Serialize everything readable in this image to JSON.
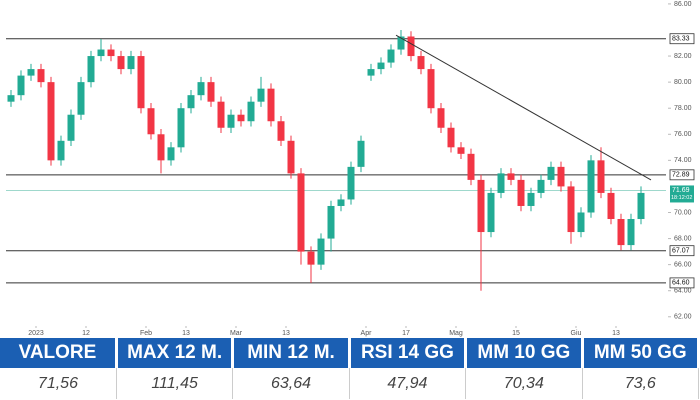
{
  "chart_data": {
    "type": "candlestick",
    "candles": [
      [
        78.5,
        79.4,
        78.1,
        79.0
      ],
      [
        79.0,
        80.9,
        78.6,
        80.5
      ],
      [
        80.5,
        81.4,
        80.1,
        81.0
      ],
      [
        81.0,
        81.4,
        79.6,
        80.0
      ],
      [
        80.0,
        80.4,
        73.6,
        74.0
      ],
      [
        74.0,
        75.9,
        73.6,
        75.5
      ],
      [
        75.5,
        77.9,
        75.1,
        77.5
      ],
      [
        77.5,
        80.4,
        77.1,
        80.0
      ],
      [
        80.0,
        82.4,
        79.6,
        82.0
      ],
      [
        82.0,
        83.3,
        81.6,
        82.5
      ],
      [
        82.5,
        82.9,
        81.6,
        82.0
      ],
      [
        82.0,
        82.4,
        80.6,
        81.0
      ],
      [
        81.0,
        82.4,
        80.6,
        82.0
      ],
      [
        82.0,
        82.4,
        77.6,
        78.0
      ],
      [
        78.0,
        78.4,
        75.6,
        76.0
      ],
      [
        76.0,
        76.4,
        73.0,
        74.0
      ],
      [
        74.0,
        75.4,
        73.6,
        75.0
      ],
      [
        75.0,
        78.4,
        74.6,
        78.0
      ],
      [
        78.0,
        79.4,
        77.6,
        79.0
      ],
      [
        79.0,
        80.4,
        78.6,
        80.0
      ],
      [
        80.0,
        80.4,
        78.1,
        78.5
      ],
      [
        78.5,
        78.9,
        76.1,
        76.5
      ],
      [
        76.5,
        77.9,
        76.1,
        77.5
      ],
      [
        77.5,
        77.9,
        76.6,
        77.0
      ],
      [
        77.0,
        78.9,
        76.6,
        78.5
      ],
      [
        78.5,
        80.4,
        78.1,
        79.5
      ],
      [
        79.5,
        79.9,
        76.6,
        77.0
      ],
      [
        77.0,
        77.4,
        75.1,
        75.5
      ],
      [
        75.5,
        75.9,
        72.6,
        73.0
      ],
      [
        73.0,
        73.4,
        66.0,
        67.0
      ],
      [
        67.0,
        67.4,
        64.6,
        66.0
      ],
      [
        66.0,
        68.4,
        65.6,
        68.0
      ],
      [
        68.0,
        70.9,
        67.0,
        70.5
      ],
      [
        70.5,
        71.4,
        70.1,
        71.0
      ],
      [
        71.0,
        73.9,
        70.6,
        73.5
      ],
      [
        73.5,
        75.9,
        73.1,
        75.5
      ],
      [
        80.5,
        81.4,
        80.1,
        81.0
      ],
      [
        81.0,
        81.9,
        80.6,
        81.5
      ],
      [
        81.5,
        82.9,
        81.1,
        82.5
      ],
      [
        82.5,
        84.0,
        82.1,
        83.5
      ],
      [
        83.5,
        83.9,
        81.6,
        82.0
      ],
      [
        82.0,
        82.4,
        80.6,
        81.0
      ],
      [
        81.0,
        81.4,
        77.6,
        78.0
      ],
      [
        78.0,
        78.4,
        76.1,
        76.5
      ],
      [
        76.5,
        76.9,
        74.6,
        75.0
      ],
      [
        75.0,
        75.4,
        74.1,
        74.5
      ],
      [
        74.5,
        74.9,
        72.1,
        72.5
      ],
      [
        72.5,
        72.9,
        64.0,
        68.5
      ],
      [
        68.5,
        71.9,
        68.1,
        71.5
      ],
      [
        71.5,
        73.4,
        71.1,
        73.0
      ],
      [
        73.0,
        73.4,
        72.1,
        72.5
      ],
      [
        72.5,
        72.9,
        70.1,
        70.5
      ],
      [
        70.5,
        71.9,
        70.1,
        71.5
      ],
      [
        71.5,
        72.9,
        71.1,
        72.5
      ],
      [
        72.5,
        73.9,
        72.1,
        73.5
      ],
      [
        73.5,
        73.9,
        71.6,
        72.0
      ],
      [
        72.0,
        72.4,
        67.6,
        68.5
      ],
      [
        68.5,
        70.4,
        68.1,
        70.0
      ],
      [
        70.0,
        74.4,
        69.6,
        74.0
      ],
      [
        74.0,
        75.0,
        71.1,
        71.5
      ],
      [
        71.5,
        71.9,
        69.1,
        69.5
      ],
      [
        69.5,
        69.9,
        67.1,
        67.5
      ],
      [
        67.5,
        69.9,
        67.1,
        69.5
      ],
      [
        69.5,
        72.0,
        69.1,
        71.5
      ]
    ],
    "up_color": "#22ab94",
    "down_color": "#f23645",
    "xlim": [
      0,
      66
    ],
    "xticks": [
      {
        "value": 3,
        "label": "2023"
      },
      {
        "value": 8,
        "label": "12"
      },
      {
        "value": 14,
        "label": "Feb"
      },
      {
        "value": 18,
        "label": "13"
      },
      {
        "value": 23,
        "label": "Mar"
      },
      {
        "value": 28,
        "label": "13"
      },
      {
        "value": 36,
        "label": "Apr"
      },
      {
        "value": 40,
        "label": "17"
      },
      {
        "value": 45,
        "label": "Mag"
      },
      {
        "value": 51,
        "label": "15"
      },
      {
        "value": 57,
        "label": "Giu"
      },
      {
        "value": 61,
        "label": "13"
      }
    ],
    "ylim": [
      61.6,
      86.3
    ],
    "yticks": [
      {
        "value": 62,
        "label": "62.00"
      },
      {
        "value": 64,
        "label": "64.00"
      },
      {
        "value": 66,
        "label": "66.00"
      },
      {
        "value": 68,
        "label": "68.00"
      },
      {
        "value": 70,
        "label": "70.00"
      },
      {
        "value": 74,
        "label": "74.00"
      },
      {
        "value": 76,
        "label": "76.00"
      },
      {
        "value": 78,
        "label": "78.00"
      },
      {
        "value": 80,
        "label": "80.00"
      },
      {
        "value": 82,
        "label": "82.00"
      },
      {
        "value": 86,
        "label": "86.00"
      }
    ],
    "levels": [
      83.33,
      72.89,
      67.07,
      {
        "value": 64.6,
        "label": "64.60"
      }
    ],
    "last_price": 71.69,
    "last_time": "18:12:02",
    "trendline": {
      "x": [
        39,
        64.5
      ],
      "y": [
        83.6,
        72.5
      ]
    }
  },
  "table": {
    "header": [
      "VALORE",
      "MAX 12 M.",
      "MIN 12 M.",
      "RSI 14 GG",
      "MM 10 GG",
      "MM 50 GG"
    ],
    "rows": [
      [
        "71,56",
        "111,45",
        "63,64",
        "47,94",
        "70,34",
        "73,6"
      ]
    ]
  }
}
